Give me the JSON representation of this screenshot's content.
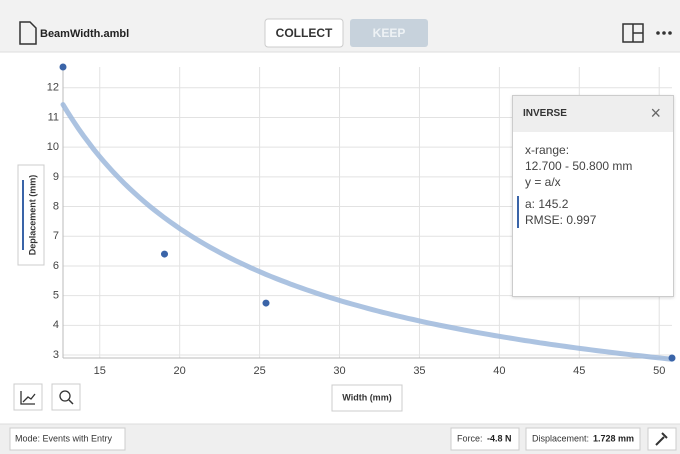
{
  "header": {
    "file_name": "BeamWidth.ambl",
    "collect": "COLLECT",
    "keep": "KEEP"
  },
  "chart_data": {
    "type": "scatter",
    "x_label": "Width (mm)",
    "y_label": "Deplacement (mm)",
    "x": [
      12.7,
      19.05,
      25.4,
      50.8
    ],
    "series": [
      {
        "name": "Displacement",
        "color": "#3a64a8",
        "values": [
          12.7,
          6.4,
          4.75,
          2.9
        ]
      }
    ],
    "xlim": [
      12.7,
      50.8
    ],
    "ylim": [
      2.9,
      12.7
    ],
    "xticks": [
      15,
      20,
      25,
      30,
      35,
      40,
      45,
      50
    ],
    "yticks": [
      3,
      4,
      5,
      6,
      7,
      8,
      9,
      10,
      11,
      12
    ],
    "grid": true,
    "fit": {
      "title": "INVERSE",
      "range_label": "x-range:",
      "range": "12.700 - 50.800 mm",
      "equation": "y = a/x",
      "coefficient": {
        "value": 145.2,
        "label": "a: 145.2"
      },
      "rmse": "RMSE: 0.997",
      "color": "#9db8dc"
    }
  },
  "footer": {
    "mode": "Mode: Events with Entry",
    "force": {
      "label": "Force:",
      "value": "-4.8 N"
    },
    "displacement": {
      "label": "Displacement:",
      "value": "1.728 mm"
    }
  }
}
